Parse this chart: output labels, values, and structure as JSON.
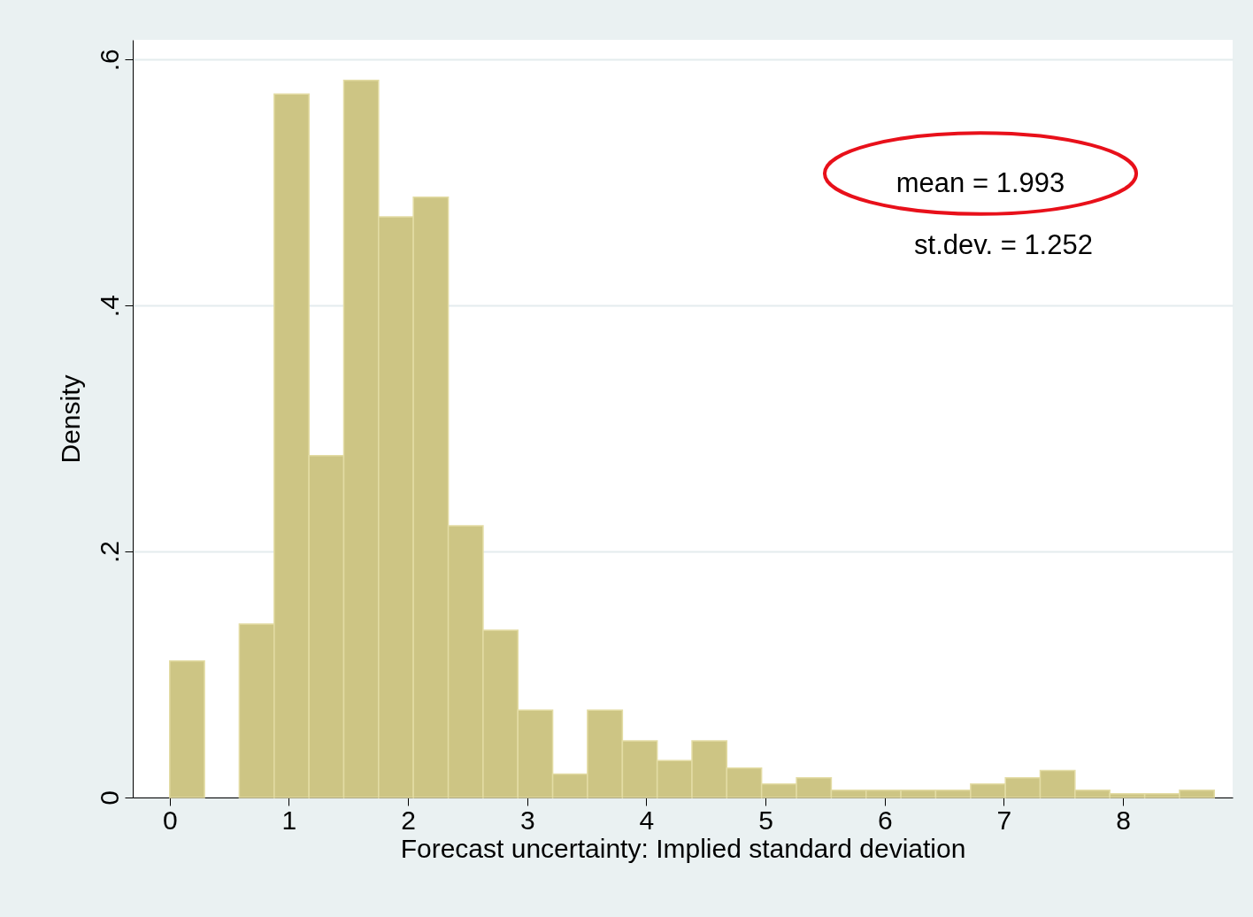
{
  "chart_data": {
    "type": "histogram",
    "xlabel": "Forecast uncertainty: Implied standard deviation",
    "ylabel": "Density",
    "bins": [
      0,
      0.292,
      0.584,
      0.877,
      1.169,
      1.461,
      1.753,
      2.045,
      2.338,
      2.63,
      2.922,
      3.214,
      3.506,
      3.799,
      4.091,
      4.383,
      4.675,
      4.967,
      5.26,
      5.552,
      5.844,
      6.136,
      6.428,
      6.721,
      7.013,
      7.305,
      7.597,
      7.889,
      8.182,
      8.474,
      8.766
    ],
    "values": [
      0.111,
      0,
      0.141,
      0.572,
      0.278,
      0.583,
      0.472,
      0.488,
      0.221,
      0.136,
      0.071,
      0.019,
      0.071,
      0.046,
      0.03,
      0.046,
      0.024,
      0.011,
      0.016,
      0.006,
      0.006,
      0.006,
      0.006,
      0.011,
      0.016,
      0.022,
      0.006,
      0.003,
      0.003,
      0.006
    ],
    "color": "#cdc584",
    "xlim": [
      -0.31,
      8.92
    ],
    "xticks": [
      0,
      1,
      2,
      3,
      4,
      5,
      6,
      7,
      8
    ],
    "ylim": [
      0,
      0.616
    ],
    "yticks": [
      0,
      {
        "value": 0.2,
        "label": ".2"
      },
      {
        "value": 0.4,
        "label": ".4"
      },
      {
        "value": 0.6,
        "label": ".6"
      }
    ],
    "grid": "y",
    "annotations": [
      "mean    = 1.993",
      "st.dev. = 1.252"
    ]
  }
}
